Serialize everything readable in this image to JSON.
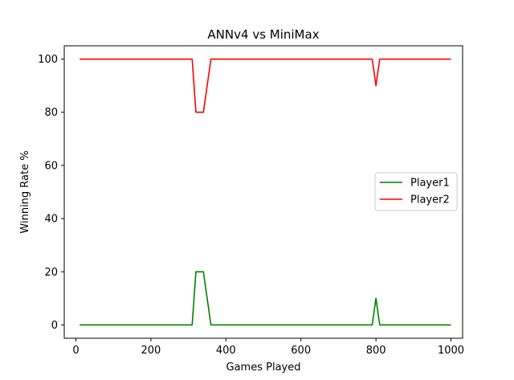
{
  "chart_data": {
    "type": "line",
    "title": "ANNv4 vs MiniMax",
    "xlabel": "Games Played",
    "ylabel": "Winning Rate %",
    "xlim": [
      -31,
      1031
    ],
    "ylim": [
      -5,
      105
    ],
    "xticks": [
      0,
      200,
      400,
      600,
      800,
      1000
    ],
    "yticks": [
      0,
      20,
      40,
      60,
      80,
      100
    ],
    "grid": false,
    "legend_position": "center-right",
    "series": [
      {
        "name": "Player1",
        "color": "#008000",
        "x": [
          10,
          310,
          320,
          340,
          360,
          790,
          800,
          810,
          1000
        ],
        "y": [
          0,
          0,
          20,
          20,
          0,
          0,
          10,
          0,
          0
        ]
      },
      {
        "name": "Player2",
        "color": "#ff0000",
        "x": [
          10,
          310,
          320,
          340,
          360,
          790,
          800,
          810,
          1000
        ],
        "y": [
          100,
          100,
          80,
          80,
          100,
          100,
          90,
          100,
          100
        ]
      }
    ]
  }
}
